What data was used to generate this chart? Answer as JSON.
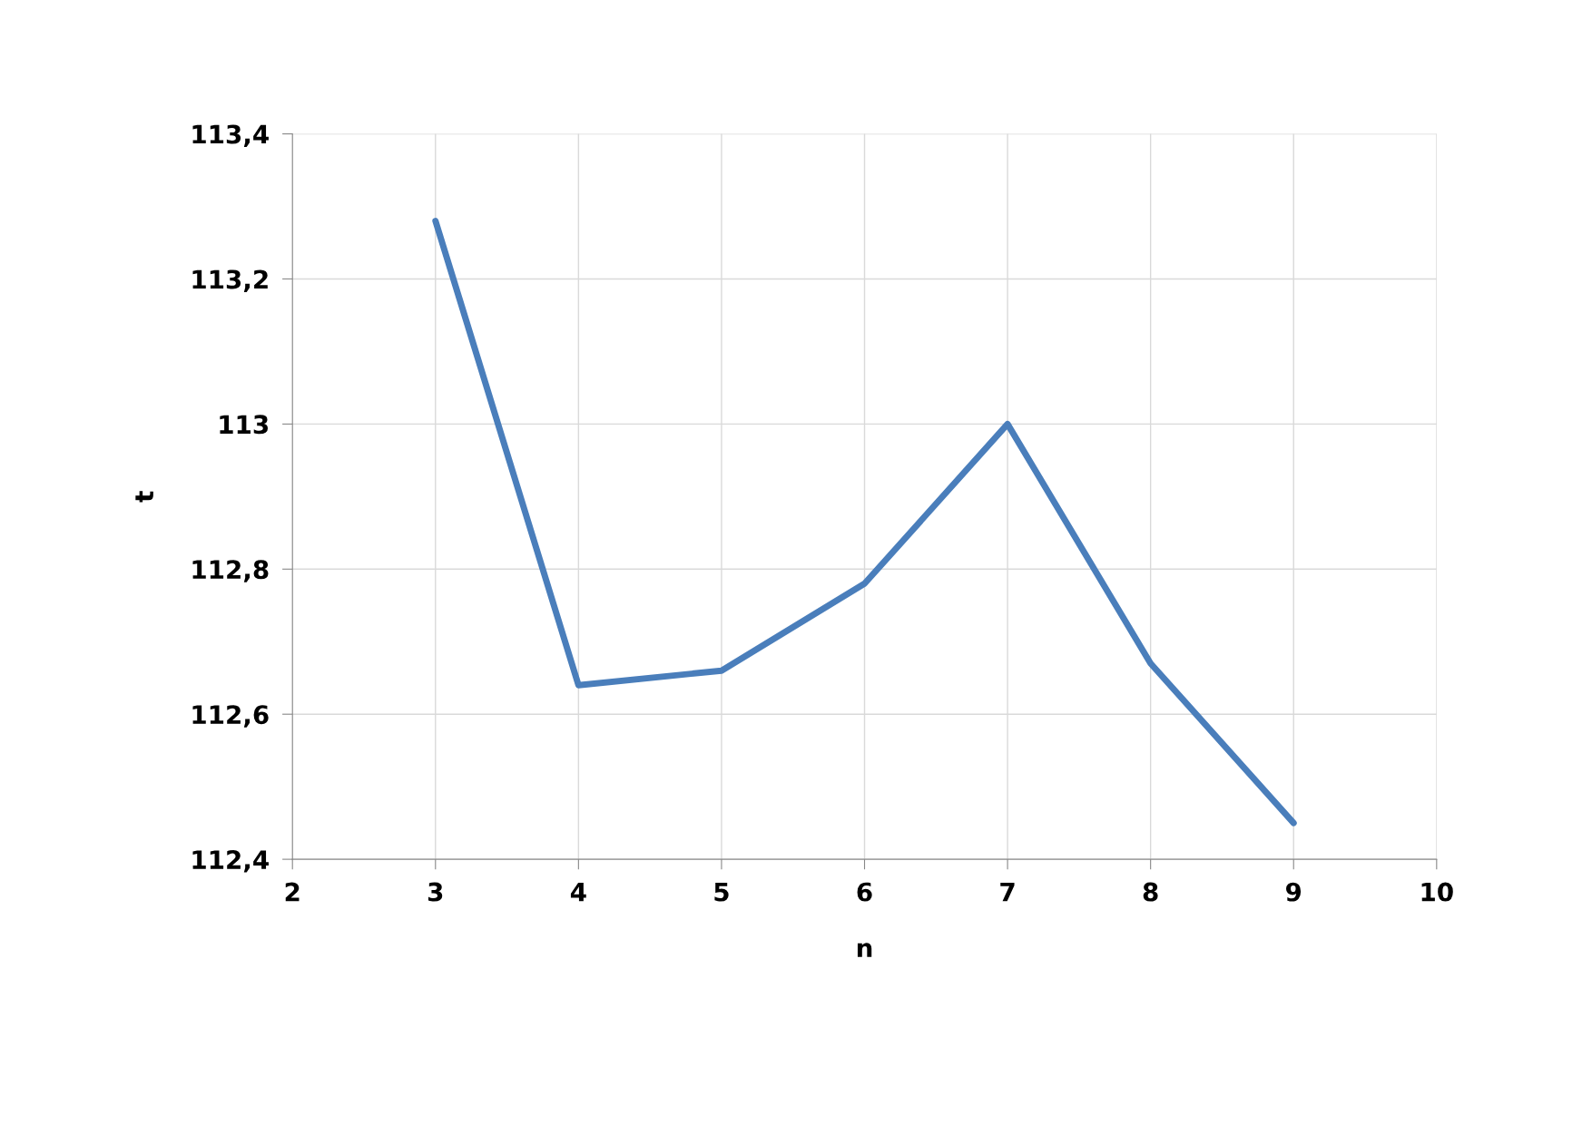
{
  "chart_data": {
    "type": "line",
    "xlabel": "n",
    "ylabel": "t",
    "x": [
      3,
      4,
      5,
      6,
      7,
      8,
      9
    ],
    "series": [
      {
        "color": "#4a7ebb",
        "values": [
          113.28,
          112.64,
          112.66,
          112.78,
          113.0,
          112.67,
          112.45
        ]
      }
    ],
    "xlim": [
      2,
      10
    ],
    "xticks": [
      2,
      3,
      4,
      5,
      6,
      7,
      8,
      9,
      10
    ],
    "ylim": [
      112.4,
      113.4
    ],
    "yticks": [
      {
        "value": 112.4,
        "label": "112,4"
      },
      {
        "value": 112.6,
        "label": "112,6"
      },
      {
        "value": 112.8,
        "label": "112,8"
      },
      {
        "value": 113,
        "label": "113"
      },
      {
        "value": 113.2,
        "label": "113,2"
      },
      {
        "value": 113.4,
        "label": "113,4"
      }
    ],
    "grid": true,
    "marker": "none",
    "line_style": "solid"
  }
}
